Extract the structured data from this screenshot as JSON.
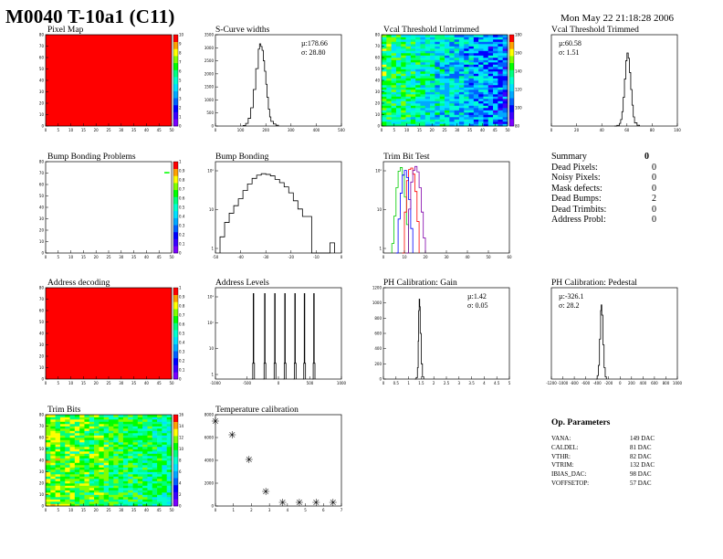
{
  "header": {
    "title": "M0040 T-10a1 (C11)",
    "date": "Mon May 22 21:18:28 2006"
  },
  "palette": {
    "red": "#ff0000",
    "rainbow": [
      "#7a00ff",
      "#3a00ff",
      "#0000ff",
      "#0060ff",
      "#00a8ff",
      "#00e0ff",
      "#00ffd0",
      "#00ff80",
      "#00ff00",
      "#80ff00",
      "#ffff00",
      "#ffa000",
      "#ff0000"
    ]
  },
  "panels": {
    "pixel_map": {
      "title": "Pixel Map",
      "zticks": [
        "10",
        "9",
        "8",
        "7",
        "6",
        "5",
        "4",
        "3",
        "2",
        "1",
        "0"
      ]
    },
    "scurve": {
      "title": "S-Curve widths",
      "mean": "µ:178.66",
      "sigma": "σ: 28.80"
    },
    "vcal_untrimmed": {
      "title": "Vcal Threshold Untrimmed",
      "zticks": [
        "180",
        "160",
        "140",
        "120",
        "100",
        "80"
      ]
    },
    "vcal_trimmed": {
      "title": "Vcal Threshold Trimmed",
      "mean": "µ:60.58",
      "sigma": "σ: 1.51"
    },
    "bump_problems": {
      "title": "Bump Bonding Problems",
      "zticks": [
        "1",
        "0.9",
        "0.8",
        "0.7",
        "0.6",
        "0.5",
        "0.4",
        "0.3",
        "0.2",
        "0.1",
        "0"
      ]
    },
    "bump_bonding": {
      "title": "Bump Bonding"
    },
    "trim_bit_test": {
      "title": "Trim Bit Test"
    },
    "address_decoding": {
      "title": "Address decoding",
      "zticks": [
        "1",
        "0.9",
        "0.8",
        "0.7",
        "0.6",
        "0.5",
        "0.4",
        "0.3",
        "0.2",
        "0.1",
        "0"
      ]
    },
    "address_levels": {
      "title": "Address Levels"
    },
    "ph_gain": {
      "title": "PH Calibration: Gain",
      "mean": "µ:1.42",
      "sigma": "σ: 0.05"
    },
    "ph_pedestal": {
      "title": "PH Calibration: Pedestal",
      "mean": "µ:-326.1",
      "sigma": "σ: 28.2"
    },
    "trim_bits": {
      "title": "Trim Bits",
      "zticks": [
        "16",
        "14",
        "12",
        "10",
        "8",
        "6",
        "4",
        "2",
        "0"
      ]
    },
    "temperature": {
      "title": "Temperature calibration"
    }
  },
  "summary": {
    "title": "Summary",
    "total": "0",
    "rows": [
      {
        "label": "Dead Pixels:",
        "value": "0"
      },
      {
        "label": "Noisy Pixels:",
        "value": "0"
      },
      {
        "label": "Mask defects:",
        "value": "0"
      },
      {
        "label": "Dead Bumps:",
        "value": "2"
      },
      {
        "label": "Dead Trimbits:",
        "value": "0"
      },
      {
        "label": "Address Probl:",
        "value": "0"
      }
    ]
  },
  "op_params": {
    "title": "Op. Parameters",
    "rows": [
      {
        "label": "VANA:",
        "value": "149 DAC"
      },
      {
        "label": "CALDEL:",
        "value": "81 DAC"
      },
      {
        "label": "VTHR:",
        "value": "82 DAC"
      },
      {
        "label": "VTRIM:",
        "value": "132 DAC"
      },
      {
        "label": "IBIAS_DAC:",
        "value": "98 DAC"
      },
      {
        "label": "VOFFSETOP:",
        "value": "57 DAC"
      }
    ]
  },
  "chart_data": [
    {
      "type": "heatmap",
      "name": "pixel_map",
      "xlim": [
        0,
        52
      ],
      "ylim": [
        0,
        80
      ],
      "zlim": [
        0,
        10
      ],
      "xticks": [
        "0",
        "5",
        "10",
        "15",
        "20",
        "25",
        "30",
        "35",
        "40",
        "45",
        "50"
      ],
      "yticks": [
        "0",
        "10",
        "20",
        "30",
        "40",
        "50",
        "60",
        "70",
        "80"
      ],
      "uniform_value": 10
    },
    {
      "type": "line",
      "name": "scurve",
      "xlim": [
        0,
        500
      ],
      "ylim": [
        0,
        3500
      ],
      "xticks": [
        "0",
        "100",
        "200",
        "300",
        "400",
        "500"
      ],
      "yticks": [
        "0",
        "500",
        "1000",
        "1500",
        "2000",
        "2500",
        "3000",
        "3500"
      ],
      "x": [
        110,
        120,
        130,
        140,
        150,
        160,
        170,
        175,
        180,
        185,
        190,
        195,
        200,
        205,
        210,
        215,
        220,
        230,
        240,
        250
      ],
      "y": [
        20,
        100,
        300,
        700,
        1400,
        2200,
        2950,
        3150,
        3050,
        2900,
        2500,
        2100,
        1600,
        1100,
        650,
        350,
        180,
        80,
        30,
        0
      ]
    },
    {
      "type": "heatmap",
      "name": "vcal_untrimmed",
      "xlim": [
        0,
        52
      ],
      "ylim": [
        0,
        80
      ],
      "zlim": [
        80,
        180
      ],
      "xticks": [
        "0",
        "5",
        "10",
        "15",
        "20",
        "25",
        "30",
        "35",
        "40",
        "45",
        "50"
      ],
      "yticks": [
        "0",
        "10",
        "20",
        "30",
        "40",
        "50",
        "60",
        "70",
        "80"
      ]
    },
    {
      "type": "line",
      "name": "vcal_trimmed",
      "xlim": [
        0,
        100
      ],
      "ylim": [
        0,
        7000
      ],
      "xticks": [
        "0",
        "20",
        "40",
        "60",
        "80",
        "100"
      ],
      "x": [
        50,
        52,
        54,
        55,
        56,
        57,
        58,
        59,
        60,
        61,
        62,
        63,
        64,
        65,
        66,
        68,
        70
      ],
      "y": [
        0,
        50,
        200,
        500,
        1100,
        2200,
        3600,
        5000,
        5600,
        5200,
        4100,
        2800,
        1600,
        700,
        250,
        60,
        0
      ]
    },
    {
      "type": "heatmap",
      "name": "bump_problems",
      "xlim": [
        0,
        52
      ],
      "ylim": [
        0,
        80
      ],
      "zlim": [
        0,
        1
      ],
      "xticks": [
        "0",
        "5",
        "10",
        "15",
        "20",
        "25",
        "30",
        "35",
        "40",
        "45",
        "50"
      ],
      "yticks": [
        "0",
        "10",
        "20",
        "30",
        "40",
        "50",
        "60",
        "70",
        "80"
      ],
      "hot_pixels": [
        [
          49,
          70
        ],
        [
          50,
          70
        ]
      ]
    },
    {
      "type": "line",
      "name": "bump_bonding",
      "log_y": true,
      "xlim": [
        -50,
        5
      ],
      "ylim": [
        1,
        500
      ],
      "xticks": [
        "-50",
        "-40",
        "-30",
        "-20",
        "-10",
        "0"
      ],
      "yticks": [
        "1",
        "10",
        "10²"
      ],
      "x": [
        -48,
        -46,
        -44,
        -42,
        -40,
        -38,
        -36,
        -34,
        -32,
        -30,
        -28,
        -26,
        -24,
        -22,
        -20,
        -18,
        -16,
        -14,
        -12,
        -10,
        -8,
        -6,
        -4,
        -2,
        0,
        2
      ],
      "y": [
        3,
        8,
        15,
        25,
        40,
        70,
        110,
        160,
        200,
        220,
        210,
        190,
        150,
        120,
        90,
        60,
        35,
        20,
        12,
        12,
        1,
        1,
        1,
        1,
        2,
        1
      ]
    },
    {
      "type": "line",
      "name": "trim_bit_test",
      "log_y": true,
      "xlim": [
        0,
        60
      ],
      "ylim": [
        1,
        800
      ],
      "xticks": [
        "0",
        "10",
        "20",
        "30",
        "40",
        "50",
        "60"
      ],
      "yticks": [
        "1",
        "10",
        "10²"
      ],
      "series": [
        {
          "color": "#00cc00",
          "x": [
            4,
            5,
            6,
            7,
            8,
            9,
            10,
            11,
            12
          ],
          "y": [
            2,
            15,
            120,
            400,
            520,
            300,
            60,
            8,
            1
          ]
        },
        {
          "color": "#ff0000",
          "x": [
            9,
            10,
            11,
            12,
            13,
            14,
            15,
            16,
            17
          ],
          "y": [
            1,
            20,
            200,
            450,
            500,
            320,
            90,
            10,
            1
          ]
        },
        {
          "color": "#0000ff",
          "x": [
            6,
            7,
            8,
            9,
            10,
            11,
            12,
            13,
            14
          ],
          "y": [
            1,
            12,
            80,
            300,
            420,
            250,
            50,
            6,
            1
          ]
        },
        {
          "color": "#8000aa",
          "x": [
            11,
            12,
            13,
            14,
            15,
            16,
            17,
            18,
            19,
            20
          ],
          "y": [
            1,
            25,
            180,
            420,
            560,
            380,
            120,
            20,
            3,
            1
          ]
        }
      ]
    },
    {
      "type": "heatmap",
      "name": "address_decoding",
      "xlim": [
        0,
        52
      ],
      "ylim": [
        0,
        80
      ],
      "zlim": [
        0,
        1
      ],
      "xticks": [
        "0",
        "5",
        "10",
        "15",
        "20",
        "25",
        "30",
        "35",
        "40",
        "45",
        "50"
      ],
      "yticks": [
        "0",
        "10",
        "20",
        "30",
        "40",
        "50",
        "60",
        "70",
        "80"
      ],
      "uniform_value": 1
    },
    {
      "type": "line",
      "name": "address_levels",
      "log_y": true,
      "xlim": [
        -1000,
        1000
      ],
      "ylim": [
        0.5,
        1500
      ],
      "xticks": [
        "-1000",
        "-500",
        "0",
        "500",
        "1000"
      ],
      "yticks": [
        "1",
        "10",
        "10²",
        "10³"
      ],
      "peaks": [
        -400,
        -220,
        -60,
        100,
        260,
        410,
        560
      ],
      "peak_height": 900
    },
    {
      "type": "line",
      "name": "ph_gain",
      "xlim": [
        0,
        5
      ],
      "ylim": [
        0,
        1200
      ],
      "xticks": [
        "0",
        "0.5",
        "1",
        "1.5",
        "2",
        "2.5",
        "3",
        "3.5",
        "4",
        "4.5",
        "5"
      ],
      "yticks": [
        "0",
        "200",
        "400",
        "600",
        "800",
        "1000",
        "1200"
      ],
      "x": [
        1.25,
        1.3,
        1.35,
        1.38,
        1.4,
        1.42,
        1.44,
        1.46,
        1.5,
        1.55,
        1.6
      ],
      "y": [
        0,
        20,
        150,
        500,
        900,
        1050,
        950,
        600,
        200,
        30,
        0
      ]
    },
    {
      "type": "line",
      "name": "ph_pedestal",
      "xlim": [
        -1200,
        1000
      ],
      "ylim": [
        0,
        800
      ],
      "xticks": [
        "-1200",
        "-1000",
        "-800",
        "-600",
        "-400",
        "-200",
        "0",
        "200",
        "400",
        "600",
        "800",
        "1000"
      ],
      "x": [
        -420,
        -400,
        -380,
        -360,
        -340,
        -330,
        -320,
        -300,
        -280,
        -260,
        -240
      ],
      "y": [
        0,
        30,
        120,
        350,
        600,
        650,
        560,
        300,
        100,
        20,
        0
      ]
    },
    {
      "type": "heatmap",
      "name": "trim_bits",
      "xlim": [
        0,
        52
      ],
      "ylim": [
        0,
        80
      ],
      "zlim": [
        0,
        16
      ],
      "xticks": [
        "0",
        "5",
        "10",
        "15",
        "20",
        "25",
        "30",
        "35",
        "40",
        "45",
        "50"
      ],
      "yticks": [
        "0",
        "10",
        "20",
        "30",
        "40",
        "50",
        "60",
        "70",
        "80"
      ]
    },
    {
      "type": "scatter",
      "name": "temperature",
      "xlim": [
        0,
        7.5
      ],
      "ylim": [
        0,
        10000
      ],
      "xticks": [
        "0",
        "1",
        "2",
        "3",
        "4",
        "5",
        "6",
        "7"
      ],
      "yticks": [
        "0",
        "2000",
        "4000",
        "6000",
        "8000"
      ],
      "x": [
        0,
        1,
        2,
        3,
        4,
        5,
        6,
        7
      ],
      "y": [
        9300,
        7800,
        5100,
        1600,
        400,
        400,
        400,
        400
      ]
    }
  ]
}
